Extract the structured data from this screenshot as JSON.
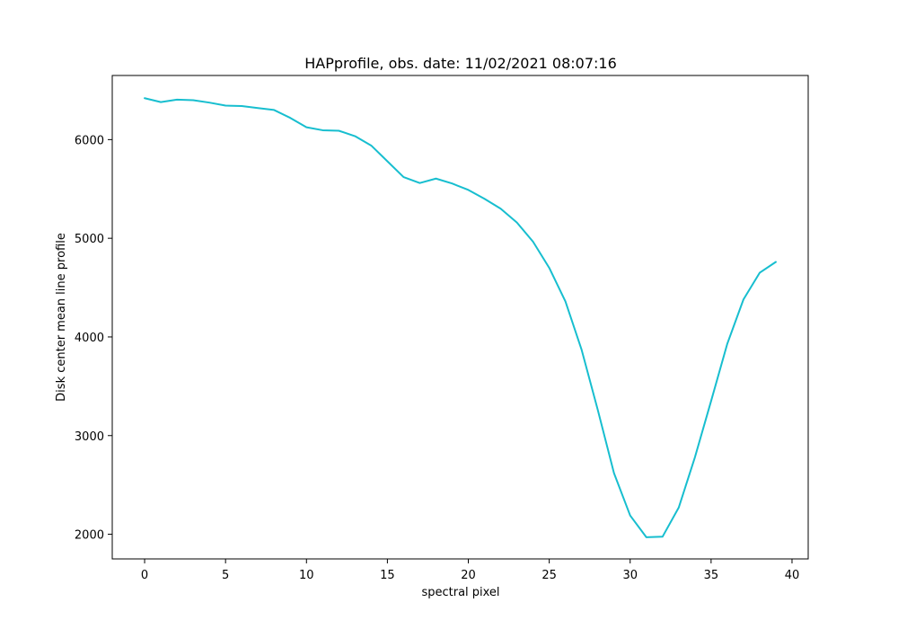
{
  "chart_data": {
    "type": "line",
    "title": "HAPprofile, obs. date: 11/02/2021 08:07:16",
    "xlabel": "spectral pixel",
    "ylabel": "Disk center mean line profile",
    "xlim": [
      -2,
      41
    ],
    "ylim": [
      1750,
      6650
    ],
    "xticks": [
      0,
      5,
      10,
      15,
      20,
      25,
      30,
      35,
      40
    ],
    "yticks": [
      2000,
      3000,
      4000,
      5000,
      6000
    ],
    "grid": false,
    "line_color": "#17becf",
    "series": [
      {
        "x": [
          0,
          1,
          2,
          3,
          4,
          5,
          6,
          7,
          8,
          9,
          10,
          11,
          12,
          13,
          14,
          15,
          16,
          17,
          18,
          19,
          20,
          21,
          22,
          23,
          24,
          25,
          26,
          27,
          28,
          29,
          30,
          31,
          32,
          33,
          34,
          35,
          36,
          37,
          38,
          39
        ],
        "values": [
          6420,
          6380,
          6405,
          6400,
          6375,
          6345,
          6340,
          6320,
          6300,
          6220,
          6125,
          6095,
          6090,
          6035,
          5940,
          5780,
          5620,
          5560,
          5605,
          5555,
          5490,
          5400,
          5300,
          5160,
          4965,
          4700,
          4360,
          3870,
          3260,
          2620,
          2190,
          1970,
          1975,
          2270,
          2780,
          3350,
          3930,
          4380,
          4650,
          4760
        ]
      }
    ]
  }
}
